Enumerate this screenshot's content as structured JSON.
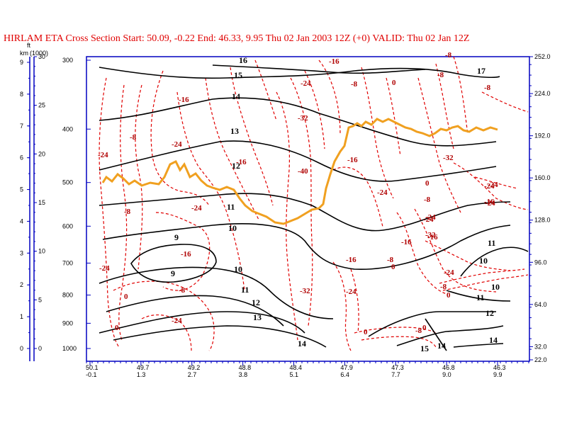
{
  "title": "HIRLAM ETA Cross Section Start:  50.09,  -0.22 End:  46.33,   9.95 Thu 02 Jan 2003 12Z  (+0) VALID: Thu 02 Jan 12Z",
  "colors": {
    "theta": "#000000",
    "temperature": "#e00000",
    "tropopause": "#f0a020",
    "axis": "#0000c0",
    "title": "#e00000"
  },
  "chart_data": {
    "type": "cross-section",
    "pressure_axis": {
      "ticks": [
        "300",
        "400",
        "500",
        "600",
        "700",
        "800",
        "900",
        "1000"
      ],
      "values": [
        300,
        400,
        500,
        600,
        700,
        800,
        900,
        1000
      ]
    },
    "km_axis": {
      "label": "km",
      "ticks": [
        "0",
        "1",
        "2",
        "3",
        "4",
        "5",
        "6",
        "7",
        "8",
        "9"
      ],
      "values": [
        0,
        1,
        2,
        3,
        4,
        5,
        6,
        7,
        8,
        9
      ]
    },
    "ft_axis": {
      "label": "ft",
      "sublabel": "(1000)",
      "ticks": [
        "0",
        "5",
        "10",
        "15",
        "20",
        "25",
        "30"
      ],
      "values": [
        0,
        5,
        10,
        15,
        20,
        25,
        30
      ]
    },
    "right_axis": {
      "ticks": [
        "22.0",
        "32.0",
        "64.0",
        "96.0",
        "128.0",
        "160.0",
        "192.0",
        "224.0",
        "252.0"
      ],
      "values": [
        22,
        32,
        64,
        96,
        128,
        160,
        192,
        224,
        252
      ]
    },
    "x_axis": {
      "lat_labels": [
        "50.1",
        "49.7",
        "49.2",
        "48.8",
        "48.4",
        "47.9",
        "47.3",
        "46.8",
        "46.3"
      ],
      "lon_labels": [
        "-0.1",
        "1.3",
        "2.7",
        "3.8",
        "5.1",
        "6.4",
        "7.7",
        "9.0",
        "9.9"
      ]
    },
    "theta_contour_labels": [
      "16",
      "15",
      "14",
      "13",
      "12",
      "11",
      "10",
      "9",
      "9",
      "10",
      "11",
      "12",
      "13",
      "14",
      "17",
      "11",
      "10",
      "11",
      "12",
      "14",
      "15",
      "14",
      "10"
    ],
    "temperature_contour_labels": [
      "-24",
      "-8",
      "-16",
      "-24",
      "-16",
      "-24",
      "-24",
      "-8",
      "-16",
      "-24",
      "-8",
      "-8",
      "0",
      "0",
      "-24",
      "-32",
      "-40",
      "-16",
      "-24",
      "-16",
      "-8",
      "0",
      "-16",
      "-24",
      "-16",
      "-32",
      "-24",
      "-8",
      "-8",
      "-8",
      "-16",
      "-24",
      "-32",
      "0",
      "0",
      "-24",
      "-8",
      "0",
      "-8",
      "-24",
      "0",
      "-16",
      "-8",
      "0",
      "-32",
      "-24",
      "-24"
    ]
  }
}
